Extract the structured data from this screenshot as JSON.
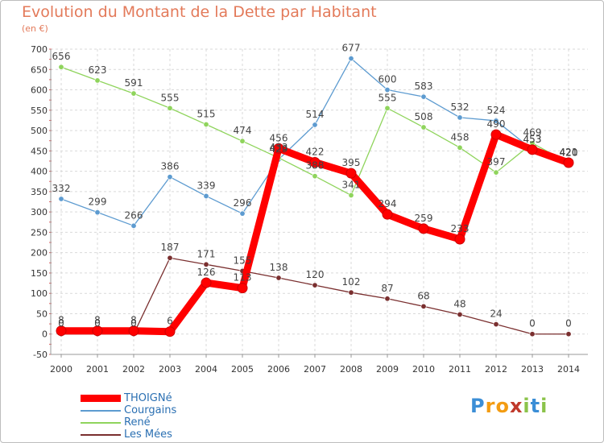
{
  "title": "Evolution du Montant de la Dette par Habitant",
  "subtitle": "(en €)",
  "logo": {
    "text": "Proxiti",
    "letters": [
      "P",
      "r",
      "o",
      "x",
      "i",
      "t",
      "i"
    ],
    "colors": [
      "#3b8ed6",
      "#f39c12",
      "#f39c12",
      "#c0392b",
      "#8bc34a",
      "#3b8ed6",
      "#8bc34a"
    ]
  },
  "chart_data": {
    "type": "line",
    "title": "Evolution du Montant de la Dette par Habitant",
    "subtitle": "(en €)",
    "xlabel": "",
    "ylabel": "",
    "x": [
      "2000",
      "2001",
      "2002",
      "2003",
      "2004",
      "2005",
      "2006",
      "2007",
      "2008",
      "2009",
      "2010",
      "2011",
      "2012",
      "2013",
      "2014"
    ],
    "yticks": [
      -50,
      0,
      50,
      100,
      150,
      200,
      250,
      300,
      350,
      400,
      450,
      500,
      550,
      600,
      650,
      700
    ],
    "ylim": [
      -50,
      700
    ],
    "grid": true,
    "legend_position": "bottom-left",
    "series": [
      {
        "name": "Courgains",
        "color": "#5d9bd0",
        "values": [
          332,
          299,
          266,
          386,
          339,
          296,
          429,
          514,
          677,
          600,
          583,
          532,
          524,
          453,
          420
        ],
        "labels": [
          "332",
          "299",
          "266",
          "386",
          "339",
          "296",
          "429",
          "514",
          "677",
          "600",
          "583",
          "532",
          "524",
          "453",
          "420"
        ]
      },
      {
        "name": "René",
        "color": "#8fd45c",
        "values": [
          656,
          623,
          591,
          555,
          515,
          474,
          433,
          388,
          341,
          555,
          508,
          458,
          397,
          469,
          420
        ],
        "labels": [
          "656",
          "623",
          "591",
          "555",
          "515",
          "474",
          "433",
          "388",
          "341",
          "555",
          "508",
          "458",
          "397",
          "469",
          "420"
        ]
      },
      {
        "name": "Les Mées",
        "color": "#7a2f2f",
        "values": [
          0,
          0,
          0,
          187,
          171,
          155,
          138,
          120,
          102,
          87,
          68,
          48,
          24,
          0,
          0
        ],
        "labels": [
          "0",
          "0",
          "0",
          "187",
          "171",
          "155",
          "138",
          "120",
          "102",
          "87",
          "68",
          "48",
          "24",
          "0",
          "0"
        ]
      },
      {
        "name": "THOIGNé",
        "color": "#ff0000",
        "values": [
          8,
          8,
          8,
          6,
          126,
          113,
          456,
          422,
          395,
          294,
          259,
          233,
          490,
          453,
          421
        ],
        "labels": [
          "8",
          "8",
          "8",
          "6",
          "126",
          "113",
          "456",
          "422",
          "395",
          "294",
          "259",
          "233",
          "490",
          "453",
          "421"
        ]
      }
    ]
  },
  "legend": [
    {
      "name": "THOIGNé",
      "color": "#ff0000"
    },
    {
      "name": "Courgains",
      "color": "#5d9bd0"
    },
    {
      "name": "René",
      "color": "#8fd45c"
    },
    {
      "name": "Les Mées",
      "color": "#7a2f2f"
    }
  ]
}
